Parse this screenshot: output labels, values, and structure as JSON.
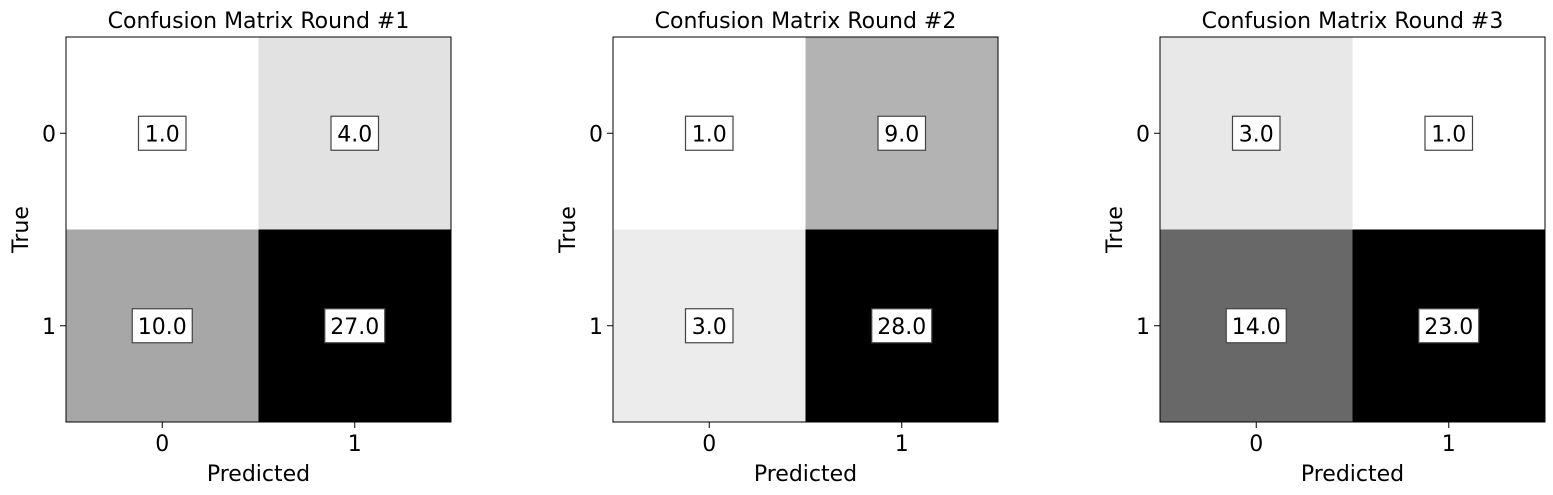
{
  "chart_data": [
    {
      "type": "heatmap",
      "title": "Confusion Matrix Round #1",
      "xlabel": "Predicted",
      "ylabel": "True",
      "x_categories": [
        "0",
        "1"
      ],
      "y_categories": [
        "0",
        "1"
      ],
      "values": [
        [
          1.0,
          4.0
        ],
        [
          10.0,
          27.0
        ]
      ],
      "labels": [
        [
          "1.0",
          "4.0"
        ],
        [
          "10.0",
          "27.0"
        ]
      ],
      "colormap": "Greys",
      "grid": false
    },
    {
      "type": "heatmap",
      "title": "Confusion Matrix Round #2",
      "xlabel": "Predicted",
      "ylabel": "True",
      "x_categories": [
        "0",
        "1"
      ],
      "y_categories": [
        "0",
        "1"
      ],
      "values": [
        [
          1.0,
          9.0
        ],
        [
          3.0,
          28.0
        ]
      ],
      "labels": [
        [
          "1.0",
          "9.0"
        ],
        [
          "3.0",
          "28.0"
        ]
      ],
      "colormap": "Greys",
      "grid": false
    },
    {
      "type": "heatmap",
      "title": "Confusion Matrix Round #3",
      "xlabel": "Predicted",
      "ylabel": "True",
      "x_categories": [
        "0",
        "1"
      ],
      "y_categories": [
        "0",
        "1"
      ],
      "values": [
        [
          3.0,
          1.0
        ],
        [
          14.0,
          23.0
        ]
      ],
      "labels": [
        [
          "3.0",
          "1.0"
        ],
        [
          "14.0",
          "23.0"
        ]
      ],
      "colormap": "Greys",
      "grid": false
    }
  ]
}
